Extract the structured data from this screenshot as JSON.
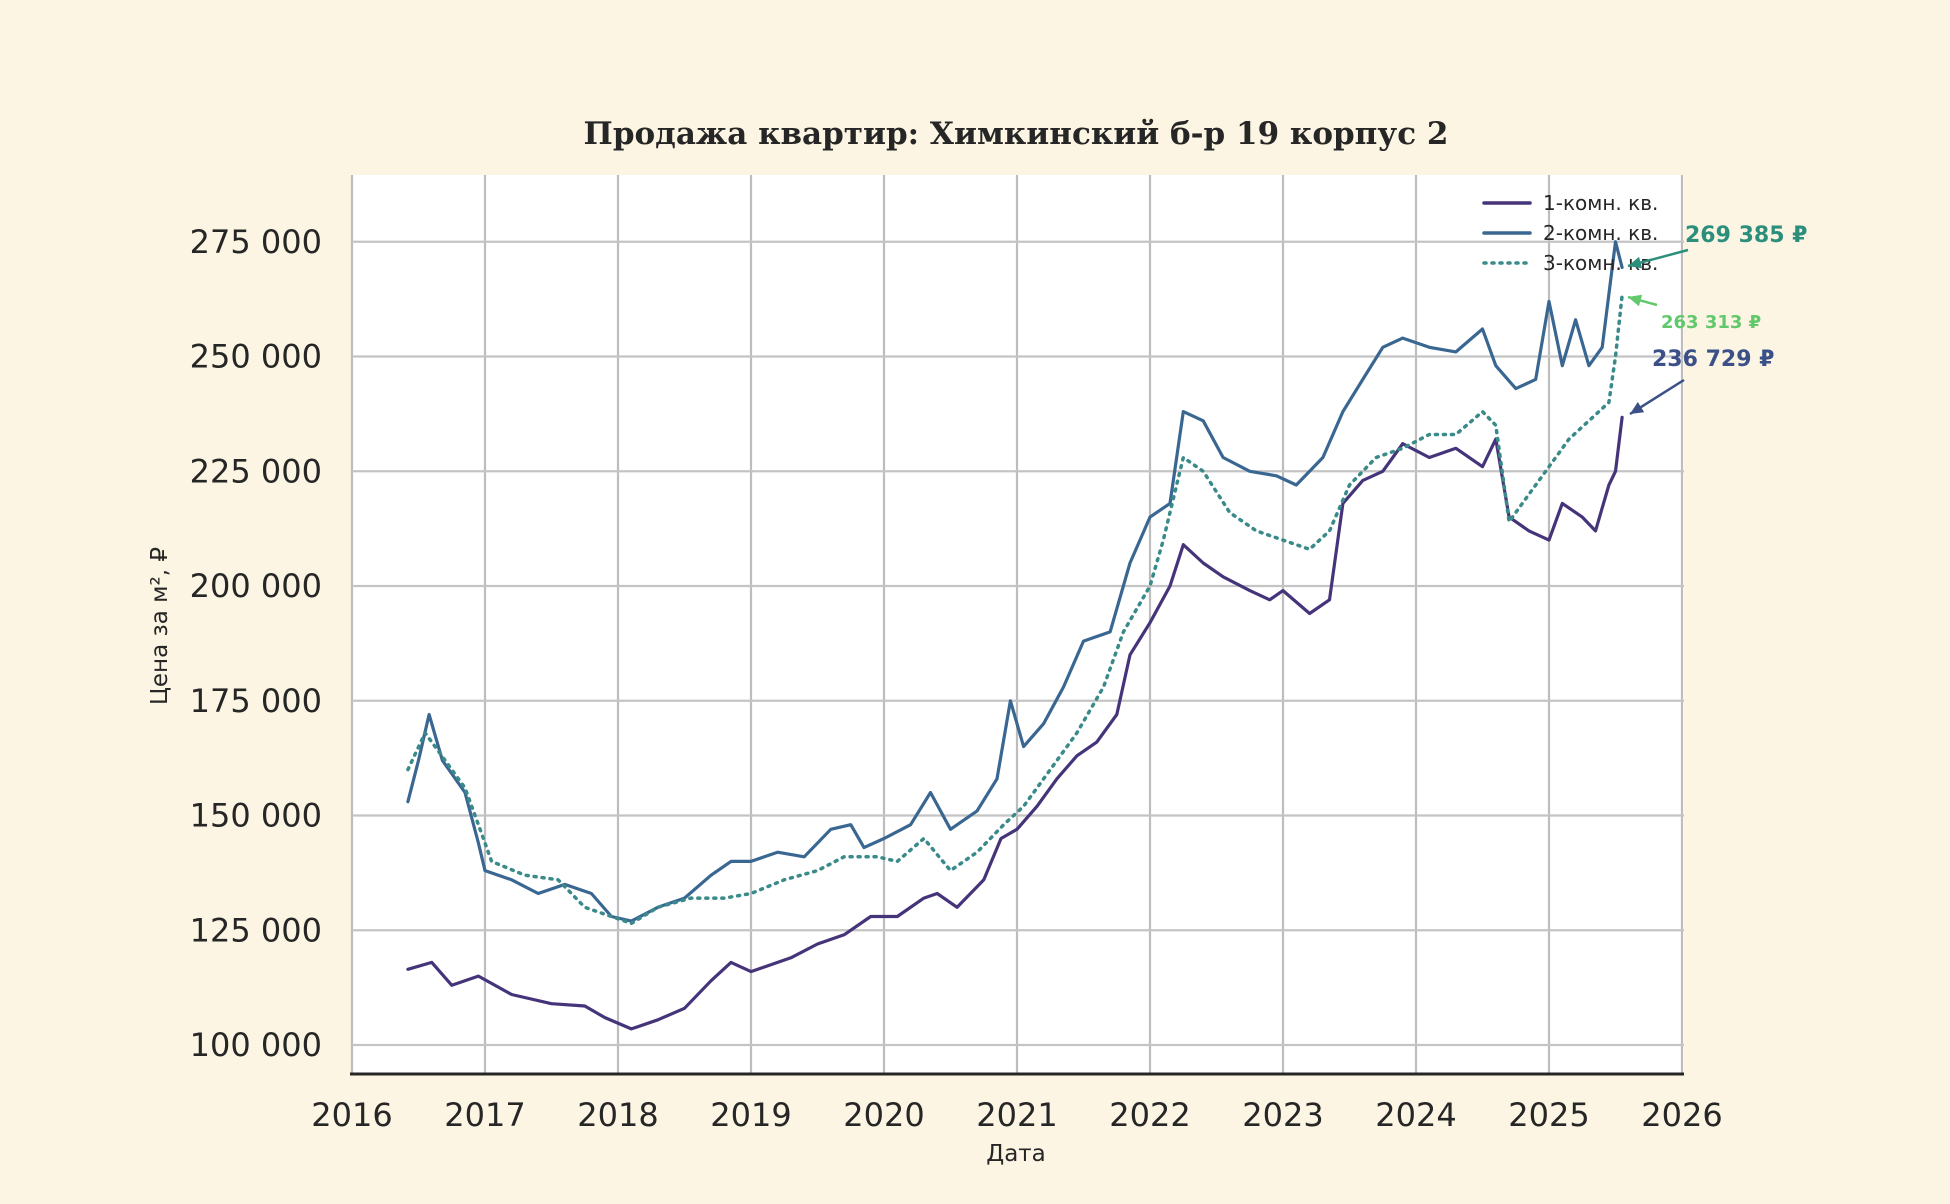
{
  "chart_data": {
    "type": "line",
    "title": "Продажа квартир: Химкинский б-р 19 корпус 2",
    "xlabel": "Дата",
    "ylabel": "Цена за м², ₽",
    "xlim": [
      2016,
      2026
    ],
    "ylim": [
      94000,
      290000
    ],
    "x_ticks": [
      "2016",
      "2017",
      "2018",
      "2019",
      "2020",
      "2021",
      "2022",
      "2023",
      "2024",
      "2025",
      "2026"
    ],
    "y_ticks": [
      {
        "value": 100000,
        "label": "100 000"
      },
      {
        "value": 125000,
        "label": "125 000"
      },
      {
        "value": 150000,
        "label": "150 000"
      },
      {
        "value": 175000,
        "label": "175 000"
      },
      {
        "value": 200000,
        "label": "200 000"
      },
      {
        "value": 225000,
        "label": "225 000"
      },
      {
        "value": 250000,
        "label": "250 000"
      },
      {
        "value": 275000,
        "label": "275 000"
      }
    ],
    "grid": true,
    "legend_position": "top-right",
    "series": [
      {
        "name": "1-комн. кв.",
        "color": "#46347a",
        "style": "solid",
        "points": [
          [
            2016.42,
            116500
          ],
          [
            2016.6,
            118000
          ],
          [
            2016.75,
            113000
          ],
          [
            2016.95,
            115000
          ],
          [
            2017.2,
            111000
          ],
          [
            2017.5,
            109000
          ],
          [
            2017.75,
            108500
          ],
          [
            2017.9,
            106000
          ],
          [
            2018.1,
            103500
          ],
          [
            2018.3,
            105500
          ],
          [
            2018.5,
            108000
          ],
          [
            2018.7,
            114000
          ],
          [
            2018.85,
            118000
          ],
          [
            2019.0,
            116000
          ],
          [
            2019.3,
            119000
          ],
          [
            2019.5,
            122000
          ],
          [
            2019.7,
            124000
          ],
          [
            2019.9,
            128000
          ],
          [
            2020.1,
            128000
          ],
          [
            2020.3,
            132000
          ],
          [
            2020.4,
            133000
          ],
          [
            2020.55,
            130000
          ],
          [
            2020.75,
            136000
          ],
          [
            2020.88,
            145000
          ],
          [
            2021.0,
            147000
          ],
          [
            2021.15,
            152000
          ],
          [
            2021.3,
            158000
          ],
          [
            2021.45,
            163000
          ],
          [
            2021.6,
            166000
          ],
          [
            2021.75,
            172000
          ],
          [
            2021.85,
            185000
          ],
          [
            2022.0,
            192000
          ],
          [
            2022.15,
            200000
          ],
          [
            2022.25,
            209000
          ],
          [
            2022.4,
            205000
          ],
          [
            2022.55,
            202000
          ],
          [
            2022.75,
            199000
          ],
          [
            2022.9,
            197000
          ],
          [
            2023.0,
            199000
          ],
          [
            2023.2,
            194000
          ],
          [
            2023.35,
            197000
          ],
          [
            2023.45,
            218000
          ],
          [
            2023.6,
            223000
          ],
          [
            2023.75,
            225000
          ],
          [
            2023.9,
            231000
          ],
          [
            2024.1,
            228000
          ],
          [
            2024.3,
            230000
          ],
          [
            2024.5,
            226000
          ],
          [
            2024.6,
            232000
          ],
          [
            2024.7,
            215000
          ],
          [
            2024.85,
            212000
          ],
          [
            2025.0,
            210000
          ],
          [
            2025.1,
            218000
          ],
          [
            2025.25,
            215000
          ],
          [
            2025.35,
            212000
          ],
          [
            2025.45,
            222000
          ],
          [
            2025.5,
            225000
          ],
          [
            2025.55,
            236729
          ]
        ]
      },
      {
        "name": "2-комн. кв.",
        "color": "#3a6792",
        "style": "solid",
        "points": [
          [
            2016.42,
            153000
          ],
          [
            2016.5,
            162000
          ],
          [
            2016.58,
            172000
          ],
          [
            2016.68,
            162000
          ],
          [
            2016.85,
            155000
          ],
          [
            2016.95,
            144000
          ],
          [
            2017.0,
            138000
          ],
          [
            2017.2,
            136000
          ],
          [
            2017.4,
            133000
          ],
          [
            2017.6,
            135000
          ],
          [
            2017.8,
            133000
          ],
          [
            2017.95,
            128000
          ],
          [
            2018.1,
            127000
          ],
          [
            2018.3,
            130000
          ],
          [
            2018.5,
            132000
          ],
          [
            2018.7,
            137000
          ],
          [
            2018.85,
            140000
          ],
          [
            2019.0,
            140000
          ],
          [
            2019.2,
            142000
          ],
          [
            2019.4,
            141000
          ],
          [
            2019.6,
            147000
          ],
          [
            2019.75,
            148000
          ],
          [
            2019.85,
            143000
          ],
          [
            2020.0,
            145000
          ],
          [
            2020.2,
            148000
          ],
          [
            2020.35,
            155000
          ],
          [
            2020.5,
            147000
          ],
          [
            2020.7,
            151000
          ],
          [
            2020.85,
            158000
          ],
          [
            2020.95,
            175000
          ],
          [
            2021.05,
            165000
          ],
          [
            2021.2,
            170000
          ],
          [
            2021.35,
            178000
          ],
          [
            2021.5,
            188000
          ],
          [
            2021.7,
            190000
          ],
          [
            2021.85,
            205000
          ],
          [
            2022.0,
            215000
          ],
          [
            2022.15,
            218000
          ],
          [
            2022.25,
            238000
          ],
          [
            2022.4,
            236000
          ],
          [
            2022.55,
            228000
          ],
          [
            2022.75,
            225000
          ],
          [
            2022.95,
            224000
          ],
          [
            2023.1,
            222000
          ],
          [
            2023.3,
            228000
          ],
          [
            2023.45,
            238000
          ],
          [
            2023.6,
            245000
          ],
          [
            2023.75,
            252000
          ],
          [
            2023.9,
            254000
          ],
          [
            2024.1,
            252000
          ],
          [
            2024.3,
            251000
          ],
          [
            2024.5,
            256000
          ],
          [
            2024.6,
            248000
          ],
          [
            2024.75,
            243000
          ],
          [
            2024.9,
            245000
          ],
          [
            2025.0,
            262000
          ],
          [
            2025.1,
            248000
          ],
          [
            2025.2,
            258000
          ],
          [
            2025.3,
            248000
          ],
          [
            2025.4,
            252000
          ],
          [
            2025.5,
            275000
          ],
          [
            2025.55,
            269385
          ]
        ]
      },
      {
        "name": "3-комн. кв.",
        "color": "#3a8a8a",
        "style": "dotted",
        "points": [
          [
            2016.42,
            160000
          ],
          [
            2016.55,
            168000
          ],
          [
            2016.7,
            162000
          ],
          [
            2016.85,
            156000
          ],
          [
            2016.95,
            148000
          ],
          [
            2017.05,
            140000
          ],
          [
            2017.3,
            137000
          ],
          [
            2017.55,
            136000
          ],
          [
            2017.75,
            130000
          ],
          [
            2017.95,
            128000
          ],
          [
            2018.1,
            126500
          ],
          [
            2018.3,
            130000
          ],
          [
            2018.55,
            132000
          ],
          [
            2018.8,
            132000
          ],
          [
            2019.0,
            133000
          ],
          [
            2019.25,
            136000
          ],
          [
            2019.5,
            138000
          ],
          [
            2019.7,
            141000
          ],
          [
            2019.95,
            141000
          ],
          [
            2020.1,
            140000
          ],
          [
            2020.3,
            145000
          ],
          [
            2020.5,
            138000
          ],
          [
            2020.7,
            142000
          ],
          [
            2020.9,
            148000
          ],
          [
            2021.05,
            152000
          ],
          [
            2021.25,
            160000
          ],
          [
            2021.45,
            168000
          ],
          [
            2021.65,
            178000
          ],
          [
            2021.8,
            190000
          ],
          [
            2022.0,
            200000
          ],
          [
            2022.1,
            210000
          ],
          [
            2022.25,
            228000
          ],
          [
            2022.4,
            225000
          ],
          [
            2022.6,
            216000
          ],
          [
            2022.8,
            212000
          ],
          [
            2023.0,
            210000
          ],
          [
            2023.2,
            208000
          ],
          [
            2023.35,
            212000
          ],
          [
            2023.5,
            222000
          ],
          [
            2023.7,
            228000
          ],
          [
            2023.9,
            230000
          ],
          [
            2024.1,
            233000
          ],
          [
            2024.3,
            233000
          ],
          [
            2024.5,
            238000
          ],
          [
            2024.6,
            235000
          ],
          [
            2024.7,
            214000
          ],
          [
            2024.85,
            220000
          ],
          [
            2025.0,
            226000
          ],
          [
            2025.15,
            232000
          ],
          [
            2025.3,
            236000
          ],
          [
            2025.45,
            240000
          ],
          [
            2025.5,
            250000
          ],
          [
            2025.55,
            263313
          ]
        ]
      }
    ],
    "annotations": [
      {
        "text": "269 385 ₽",
        "series": "2-комн. кв.",
        "color": "#2b8f7c",
        "x": 2025.55,
        "y": 269385
      },
      {
        "text": "263 313 ₽",
        "series": "3-комн. кв.",
        "color": "#62c86c",
        "x": 2025.55,
        "y": 263313
      },
      {
        "text": "236 729 ₽",
        "series": "1-комн. кв.",
        "color": "#3b5088",
        "x": 2025.55,
        "y": 236729
      }
    ]
  }
}
